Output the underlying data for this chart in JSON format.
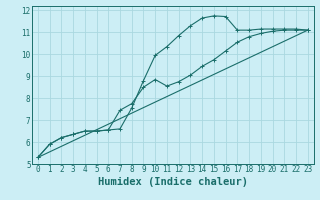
{
  "xlabel": "Humidex (Indice chaleur)",
  "background_color": "#cceef5",
  "grid_color": "#aad8e0",
  "line_color": "#1a6e6a",
  "xlim": [
    -0.5,
    23.5
  ],
  "ylim": [
    5.0,
    12.2
  ],
  "xticks": [
    0,
    1,
    2,
    3,
    4,
    5,
    6,
    7,
    8,
    9,
    10,
    11,
    12,
    13,
    14,
    15,
    16,
    17,
    18,
    19,
    20,
    21,
    22,
    23
  ],
  "yticks": [
    5,
    6,
    7,
    8,
    9,
    10,
    11,
    12
  ],
  "curve1_x": [
    0,
    1,
    2,
    3,
    4,
    5,
    6,
    7,
    8,
    9,
    10,
    11,
    12,
    13,
    14,
    15,
    16,
    17,
    18,
    19,
    20,
    21,
    22,
    23
  ],
  "curve1_y": [
    5.3,
    5.9,
    6.2,
    6.35,
    6.5,
    6.5,
    6.55,
    6.6,
    7.55,
    8.8,
    9.95,
    10.35,
    10.85,
    11.3,
    11.65,
    11.75,
    11.72,
    11.1,
    11.1,
    11.15,
    11.15,
    11.15,
    11.15,
    11.1
  ],
  "curve2_x": [
    0,
    1,
    2,
    3,
    4,
    5,
    6,
    7,
    8,
    9,
    10,
    11,
    12,
    13,
    14,
    15,
    16,
    17,
    18,
    19,
    20,
    21,
    22,
    23
  ],
  "curve2_y": [
    5.3,
    5.9,
    6.2,
    6.35,
    6.5,
    6.5,
    6.55,
    7.45,
    7.75,
    8.5,
    8.85,
    8.55,
    8.75,
    9.05,
    9.45,
    9.75,
    10.15,
    10.55,
    10.8,
    10.95,
    11.05,
    11.1,
    11.1,
    11.1
  ],
  "curve3_x": [
    0,
    23
  ],
  "curve3_y": [
    5.3,
    11.1
  ],
  "tick_fontsize": 5.5,
  "xlabel_fontsize": 7.5
}
